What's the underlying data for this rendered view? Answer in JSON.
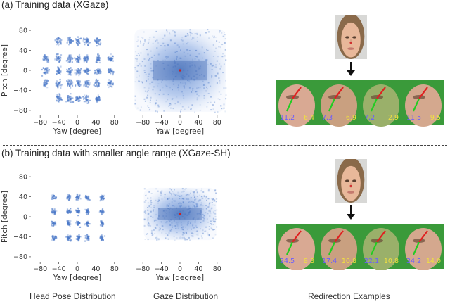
{
  "sections": [
    {
      "title": "(a) Training data (XGaze)",
      "head_pose": {
        "xlabel": "Yaw [degree]",
        "ylabel": "Pitch [degree]",
        "xticks": [
          "−80",
          "−40",
          "0",
          "40",
          "80"
        ],
        "yticks": [
          "80",
          "40",
          "0",
          "−40",
          "−80"
        ]
      },
      "gaze": {
        "xlabel": "Yaw [degree]",
        "xticks": [
          "−80",
          "−40",
          "0",
          "40",
          "80"
        ]
      },
      "redirection_values": [
        {
          "left": "11.2",
          "right": "6.4"
        },
        {
          "left": "7.3",
          "right": "6.9"
        },
        {
          "left": "7.2",
          "right": "2.9"
        },
        {
          "left": "11.5",
          "right": "9.5"
        }
      ]
    },
    {
      "title": "(b) Training data with smaller angle range (XGaze-SH)",
      "head_pose": {
        "xlabel": "Yaw [degree]",
        "ylabel": "Pitch [degree]",
        "xticks": [
          "−80",
          "−40",
          "0",
          "40",
          "80"
        ],
        "yticks": [
          "80",
          "40",
          "0",
          "−40",
          "−80"
        ]
      },
      "gaze": {
        "xlabel": "Yaw [degree]",
        "xticks": [
          "−80",
          "−40",
          "0",
          "40",
          "80"
        ]
      },
      "redirection_values": [
        {
          "left": "24.5",
          "right": "8.8"
        },
        {
          "left": "17.4",
          "right": "10.8"
        },
        {
          "left": "22.1",
          "right": "10.8"
        },
        {
          "left": "34.2",
          "right": "14.0"
        }
      ]
    }
  ],
  "captions": {
    "head_pose": "Head Pose Distribution",
    "gaze": "Gaze Distribution",
    "redirection": "Redirection Examples"
  },
  "colors": {
    "density": "#4a78c8",
    "arrow_green": "#22cc22",
    "arrow_red": "#e02020",
    "value_left": "#6a5cff",
    "value_right": "#f0e040",
    "face_bg": "#3a9a3a"
  }
}
